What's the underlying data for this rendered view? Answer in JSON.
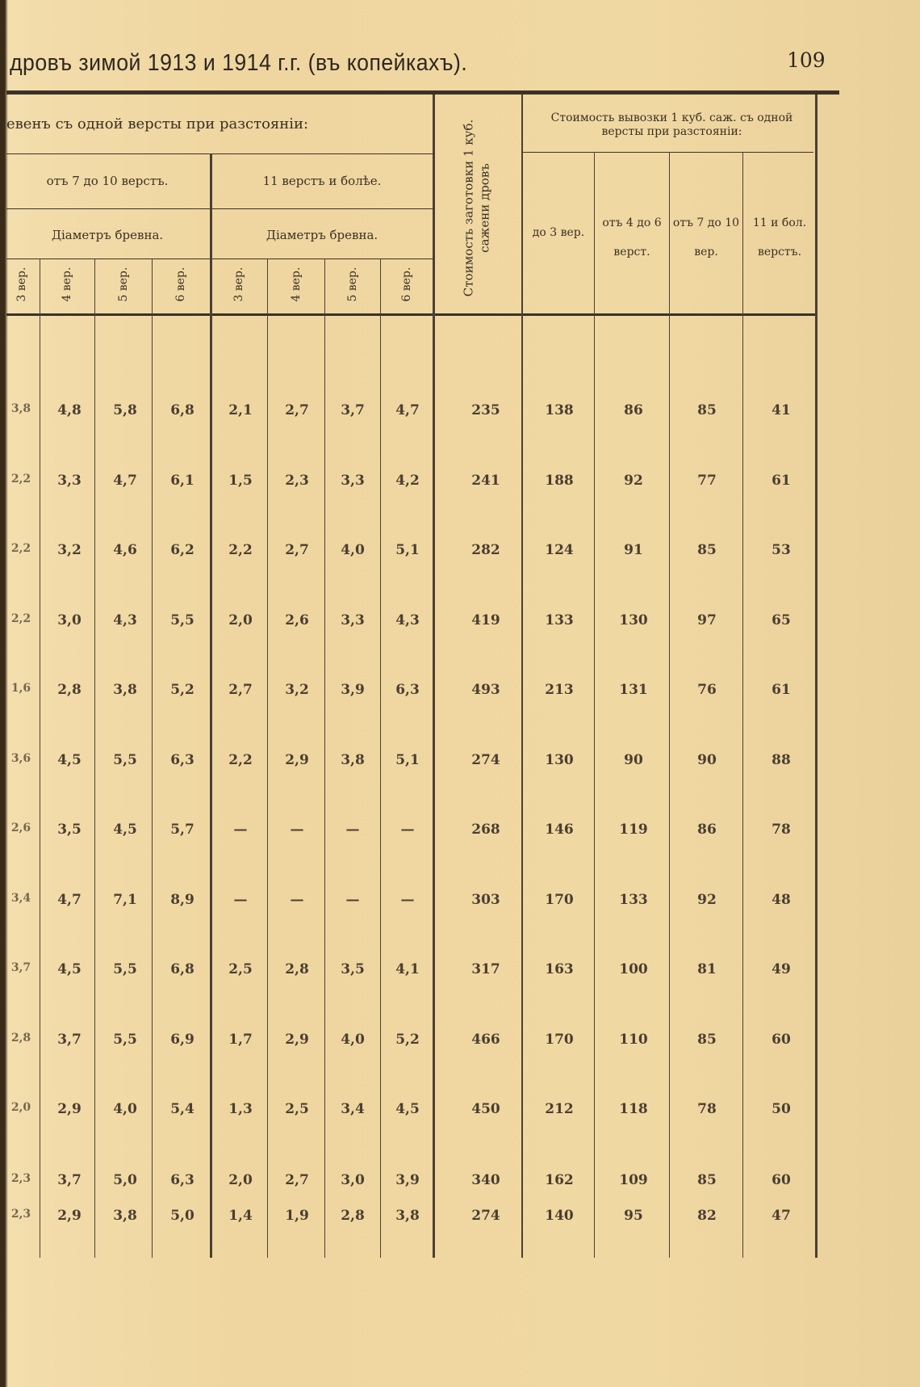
{
  "page": {
    "running_title": "дровъ зимой 1913 и 1914 г.г. (въ копейкахъ).",
    "page_number": "109"
  },
  "table": {
    "header": {
      "group_left": "евенъ съ одной версты при разстояніи:",
      "range_7_10": "отъ 7 до 10 верстъ.",
      "range_11_plus": "11 верстъ и болѣе.",
      "diameter_a": "Діаметръ бревна.",
      "diameter_b": "Діаметръ бревна.",
      "sub": [
        "3 вер.",
        "4 вер.",
        "5 вер.",
        "6 вер.",
        "3 вер.",
        "4 вер.",
        "5 вер.",
        "6 вер."
      ],
      "cost_prep": "Стоимость заготовки 1 куб. сажени дровъ",
      "group_right": "Стоимость вывозки 1 куб. саж. съ одной версты при разстояніи:",
      "right_cols": [
        "до 3 вер.",
        "отъ 4 до 6 верст.",
        "отъ 7 до 10 вер.",
        "11 и бол. верстъ."
      ]
    },
    "rows": [
      [
        "3,8",
        "4,8",
        "5,8",
        "6,8",
        "2,1",
        "2,7",
        "3,7",
        "4,7",
        "235",
        "138",
        "86",
        "85",
        "41"
      ],
      [
        "2,2",
        "3,3",
        "4,7",
        "6,1",
        "1,5",
        "2,3",
        "3,3",
        "4,2",
        "241",
        "188",
        "92",
        "77",
        "61"
      ],
      [
        "2,2",
        "3,2",
        "4,6",
        "6,2",
        "2,2",
        "2,7",
        "4,0",
        "5,1",
        "282",
        "124",
        "91",
        "85",
        "53"
      ],
      [
        "2,2",
        "3,0",
        "4,3",
        "5,5",
        "2,0",
        "2,6",
        "3,3",
        "4,3",
        "419",
        "133",
        "130",
        "97",
        "65"
      ],
      [
        "1,6",
        "2,8",
        "3,8",
        "5,2",
        "2,7",
        "3,2",
        "3,9",
        "6,3",
        "493",
        "213",
        "131",
        "76",
        "61"
      ],
      [
        "3,6",
        "4,5",
        "5,5",
        "6,3",
        "2,2",
        "2,9",
        "3,8",
        "5,1",
        "274",
        "130",
        "90",
        "90",
        "88"
      ],
      [
        "2,6",
        "3,5",
        "4,5",
        "5,7",
        "—",
        "—",
        "—",
        "—",
        "268",
        "146",
        "119",
        "86",
        "78"
      ],
      [
        "3,4",
        "4,7",
        "7,1",
        "8,9",
        "—",
        "—",
        "—",
        "—",
        "303",
        "170",
        "133",
        "92",
        "48"
      ],
      [
        "3,7",
        "4,5",
        "5,5",
        "6,8",
        "2,5",
        "2,8",
        "3,5",
        "4,1",
        "317",
        "163",
        "100",
        "81",
        "49"
      ],
      [
        "2,8",
        "3,7",
        "5,5",
        "6,9",
        "1,7",
        "2,9",
        "4,0",
        "5,2",
        "466",
        "170",
        "110",
        "85",
        "60"
      ],
      [
        "2,0",
        "2,9",
        "4,0",
        "5,4",
        "1,3",
        "2,5",
        "3,4",
        "4,5",
        "450",
        "212",
        "118",
        "78",
        "50"
      ],
      [
        "2,3",
        "3,7",
        "5,0",
        "6,3",
        "2,0",
        "2,7",
        "3,0",
        "3,9",
        "340",
        "162",
        "109",
        "85",
        "60"
      ],
      [
        "2,3",
        "2,9",
        "3,8",
        "5,0",
        "1,4",
        "1,9",
        "2,8",
        "3,8",
        "274",
        "140",
        "95",
        "82",
        "47"
      ]
    ]
  }
}
